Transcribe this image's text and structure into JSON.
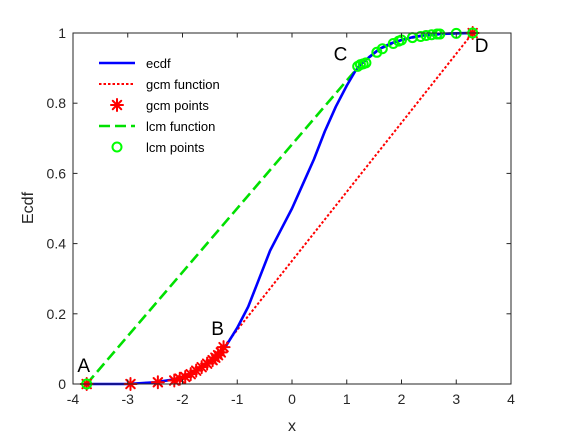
{
  "chart_data": {
    "type": "line",
    "xlabel": "x",
    "ylabel": "Ecdf",
    "xlim": [
      -4,
      4
    ],
    "ylim": [
      0,
      1
    ],
    "xticks": [
      "-4",
      "-3",
      "-2",
      "-1",
      "0",
      "1",
      "2",
      "3",
      "4"
    ],
    "yticks": [
      "0",
      "0.2",
      "0.4",
      "0.6",
      "0.8",
      "1"
    ],
    "grid": false,
    "legend_position": "top-left",
    "colors": {
      "ecdf": "#0000ff",
      "gcm": "#ff0000",
      "lcm": "#00ff00",
      "lcm_function": "#00e000",
      "axis": "#262626"
    },
    "series": [
      {
        "name": "ecdf",
        "style": "solid-line",
        "x": [
          -3.75,
          -3.5,
          -3.0,
          -2.5,
          -2.2,
          -2.0,
          -1.8,
          -1.6,
          -1.4,
          -1.2,
          -1.0,
          -0.8,
          -0.6,
          -0.4,
          -0.2,
          0.0,
          0.2,
          0.4,
          0.6,
          0.8,
          1.0,
          1.15,
          1.25,
          1.4,
          1.6,
          1.8,
          2.0,
          2.2,
          2.4,
          2.6,
          2.8,
          3.0,
          3.3
        ],
        "y": [
          0.0,
          0.0,
          0.0,
          0.005,
          0.012,
          0.02,
          0.035,
          0.055,
          0.075,
          0.11,
          0.16,
          0.22,
          0.3,
          0.38,
          0.44,
          0.5,
          0.57,
          0.64,
          0.72,
          0.79,
          0.85,
          0.89,
          0.91,
          0.93,
          0.955,
          0.97,
          0.98,
          0.988,
          0.993,
          0.996,
          0.998,
          0.999,
          1.0
        ]
      },
      {
        "name": "gcm function",
        "style": "dotted-line",
        "x": [
          -3.75,
          -3.0,
          -2.5,
          -2.2,
          -2.0,
          -1.8,
          -1.6,
          -1.4,
          -1.3,
          -1.25,
          3.3
        ],
        "y": [
          0.0,
          0.0,
          0.005,
          0.012,
          0.02,
          0.035,
          0.055,
          0.075,
          0.09,
          0.105,
          1.0
        ]
      },
      {
        "name": "gcm points",
        "style": "markers-star",
        "x": [
          -3.75,
          -2.95,
          -2.45,
          -2.15,
          -2.05,
          -1.95,
          -1.85,
          -1.75,
          -1.65,
          -1.55,
          -1.45,
          -1.4,
          -1.35,
          -1.3,
          -1.25,
          3.3
        ],
        "y": [
          0.0,
          0.0,
          0.005,
          0.01,
          0.015,
          0.02,
          0.028,
          0.038,
          0.048,
          0.058,
          0.068,
          0.075,
          0.082,
          0.09,
          0.105,
          1.0
        ]
      },
      {
        "name": "lcm function",
        "style": "dashed-line",
        "x": [
          -3.75,
          1.25,
          1.6,
          2.0,
          2.3,
          2.7,
          3.0,
          3.3
        ],
        "y": [
          0.0,
          0.91,
          0.955,
          0.98,
          0.99,
          0.997,
          0.999,
          1.0
        ]
      },
      {
        "name": "lcm points",
        "style": "markers-circle",
        "x": [
          -3.75,
          1.2,
          1.25,
          1.3,
          1.35,
          1.55,
          1.65,
          1.85,
          1.95,
          2.0,
          2.2,
          2.35,
          2.45,
          2.55,
          2.65,
          2.7,
          3.0,
          3.3
        ],
        "y": [
          0.0,
          0.905,
          0.91,
          0.912,
          0.915,
          0.945,
          0.955,
          0.97,
          0.977,
          0.98,
          0.987,
          0.99,
          0.993,
          0.995,
          0.997,
          0.997,
          0.999,
          1.0
        ]
      }
    ],
    "annotations": [
      {
        "label": "A",
        "x": -3.75,
        "y": 0.0
      },
      {
        "label": "B",
        "x": -1.25,
        "y": 0.105
      },
      {
        "label": "C",
        "x": 1.25,
        "y": 0.91
      },
      {
        "label": "D",
        "x": 3.3,
        "y": 1.0
      }
    ]
  }
}
